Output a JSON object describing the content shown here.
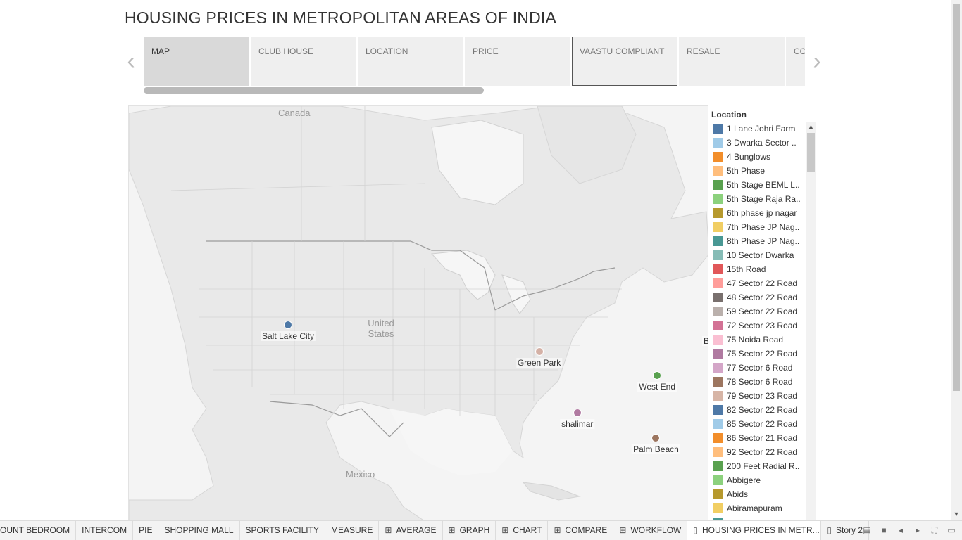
{
  "title": "HOUSING PRICES IN METROPOLITAN AREAS OF INDIA",
  "story_tabs": [
    {
      "label": "MAP",
      "state": "active"
    },
    {
      "label": "CLUB HOUSE",
      "state": ""
    },
    {
      "label": "LOCATION",
      "state": ""
    },
    {
      "label": "PRICE",
      "state": ""
    },
    {
      "label": "VAASTU COMPLIANT",
      "state": "hover"
    },
    {
      "label": "RESALE",
      "state": ""
    },
    {
      "label": "CO",
      "state": ""
    }
  ],
  "nav": {
    "prev_icon": "chevron-left-icon",
    "next_icon": "chevron-right-icon"
  },
  "map": {
    "region_labels": [
      {
        "text": "Canada"
      },
      {
        "text": "United States"
      },
      {
        "text": "Mexico"
      }
    ],
    "points": [
      {
        "label": "Salt Lake City",
        "color": "#4e79a7",
        "lon": -111.9,
        "lat": 40.8
      },
      {
        "label": "Green Park",
        "color": "#d4b1a6",
        "lon": -90.2,
        "lat": 37.5
      },
      {
        "label": "Bally",
        "color": "#f28e2b",
        "lon": -75.2,
        "lat": 40.2
      },
      {
        "label": "West End",
        "color": "#59a14f",
        "lon": -80.0,
        "lat": 34.5
      },
      {
        "label": "shalimar",
        "color": "#b07aa1",
        "lon": -86.9,
        "lat": 29.9
      },
      {
        "label": "Palm Beach",
        "color": "#9c755f",
        "lon": -80.1,
        "lat": 26.7
      }
    ]
  },
  "legend": {
    "title": "Location",
    "items": [
      {
        "label": "1 Lane Johri Farm",
        "color": "#4e79a7"
      },
      {
        "label": "3 Dwarka Sector ..",
        "color": "#a0cbe8"
      },
      {
        "label": "4 Bunglows",
        "color": "#f28e2b"
      },
      {
        "label": "5th Phase",
        "color": "#ffbe7d"
      },
      {
        "label": "5th Stage BEML L..",
        "color": "#59a14f"
      },
      {
        "label": "5th Stage Raja Ra..",
        "color": "#8cd17d"
      },
      {
        "label": "6th phase jp nagar",
        "color": "#b6992d"
      },
      {
        "label": "7th Phase JP Nag..",
        "color": "#f1ce63"
      },
      {
        "label": "8th Phase JP Nag..",
        "color": "#499894"
      },
      {
        "label": "10 Sector Dwarka",
        "color": "#86bcb6"
      },
      {
        "label": "15th Road",
        "color": "#e15759"
      },
      {
        "label": "47 Sector 22 Road",
        "color": "#ff9d9a"
      },
      {
        "label": "48 Sector 22 Road",
        "color": "#79706e"
      },
      {
        "label": "59 Sector 22 Road",
        "color": "#bab0ac"
      },
      {
        "label": "72 Sector 23 Road",
        "color": "#d37295"
      },
      {
        "label": "75 Noida Road",
        "color": "#fabfd2"
      },
      {
        "label": "75 Sector 22 Road",
        "color": "#b07aa1"
      },
      {
        "label": "77 Sector 6 Road",
        "color": "#d4a6c8"
      },
      {
        "label": "78 Sector 6 Road",
        "color": "#9d7660"
      },
      {
        "label": "79 Sector 23 Road",
        "color": "#d7b5a6"
      },
      {
        "label": "82 Sector 22 Road",
        "color": "#4e79a7"
      },
      {
        "label": "85 Sector 22 Road",
        "color": "#a0cbe8"
      },
      {
        "label": "86 Sector 21 Road",
        "color": "#f28e2b"
      },
      {
        "label": "92 Sector 22 Road",
        "color": "#ffbe7d"
      },
      {
        "label": "200 Feet Radial R..",
        "color": "#59a14f"
      },
      {
        "label": "Abbigere",
        "color": "#8cd17d"
      },
      {
        "label": "Abids",
        "color": "#b6992d"
      },
      {
        "label": "Abiramapuram",
        "color": "#f1ce63"
      },
      {
        "label": "",
        "color": "#499894"
      }
    ]
  },
  "sheet_tabs": [
    {
      "label": "OUNT BEDROOM",
      "icon": "",
      "active": false
    },
    {
      "label": "INTERCOM",
      "icon": "",
      "active": false
    },
    {
      "label": "PIE",
      "icon": "",
      "active": false
    },
    {
      "label": "SHOPPING MALL",
      "icon": "",
      "active": false
    },
    {
      "label": "SPORTS FACILITY",
      "icon": "",
      "active": false
    },
    {
      "label": "MEASURE",
      "icon": "",
      "active": false
    },
    {
      "label": "AVERAGE",
      "icon": "dashboard-icon",
      "active": false
    },
    {
      "label": "GRAPH",
      "icon": "dashboard-icon",
      "active": false
    },
    {
      "label": "CHART",
      "icon": "dashboard-icon",
      "active": false
    },
    {
      "label": "COMPARE",
      "icon": "dashboard-icon",
      "active": false
    },
    {
      "label": "WORKFLOW",
      "icon": "dashboard-icon",
      "active": false
    },
    {
      "label": "HOUSING PRICES IN METR...",
      "icon": "story-icon",
      "active": true
    },
    {
      "label": "Story 2",
      "icon": "story-icon",
      "active": false
    }
  ],
  "bottom_controls": [
    "sheet-sorter-icon",
    "filmstrip-icon",
    "previous-sheet-icon",
    "next-sheet-icon",
    "fullscreen-icon",
    "presentation-icon"
  ]
}
